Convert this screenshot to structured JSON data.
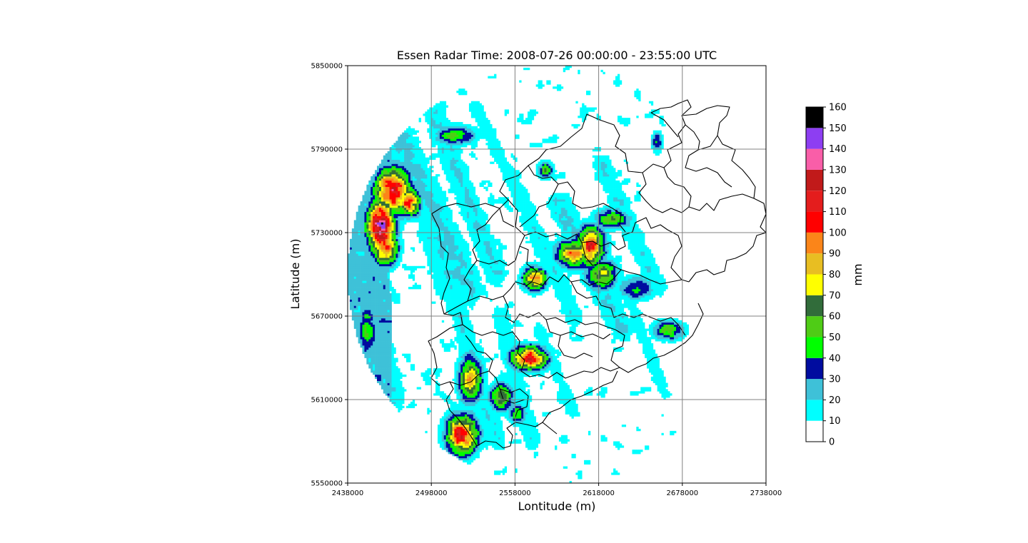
{
  "chart_data": {
    "type": "heatmap",
    "title": "Essen Radar Time: 2008-07-26 00:00:00 - 23:55:00 UTC",
    "xlabel": "Lontitude (m)",
    "ylabel": "Latitude (m)",
    "xlim": [
      2438000,
      2738000
    ],
    "ylim": [
      5550000,
      5850000
    ],
    "x_ticks": [
      "2438000",
      "2498000",
      "2558000",
      "2618000",
      "2678000",
      "2738000"
    ],
    "y_ticks": [
      "5550000",
      "5610000",
      "5670000",
      "5730000",
      "5790000",
      "5850000"
    ],
    "grid": true,
    "radar_center": [
      2588000,
      5700000
    ],
    "radar_range_m": 150000,
    "colorbar": {
      "label": "mm",
      "ticks": [
        "0",
        "10",
        "20",
        "30",
        "40",
        "50",
        "60",
        "70",
        "80",
        "90",
        "100",
        "110",
        "120",
        "130",
        "140",
        "150",
        "160"
      ],
      "bounds": [
        0,
        10,
        20,
        30,
        40,
        50,
        60,
        70,
        80,
        90,
        100,
        110,
        120,
        130,
        140,
        150,
        160
      ],
      "colors": [
        "#ffffff",
        "#00ffff",
        "#3ec1d8",
        "#000c9f",
        "#00ff00",
        "#4fcc16",
        "#316c3a",
        "#ffff00",
        "#e8be22",
        "#fb8519",
        "#ff0000",
        "#e41d1d",
        "#c11a1a",
        "#f95ea8",
        "#8d3ef2",
        "#000000"
      ]
    },
    "precip_cells": [
      {
        "x": 2470000,
        "y": 5760000,
        "peak": 120,
        "sx": 9000,
        "sy": 12000
      },
      {
        "x": 2462000,
        "y": 5735000,
        "peak": 140,
        "sx": 7000,
        "sy": 14000
      },
      {
        "x": 2465000,
        "y": 5720000,
        "peak": 110,
        "sx": 6000,
        "sy": 9000
      },
      {
        "x": 2482000,
        "y": 5752000,
        "peak": 100,
        "sx": 6000,
        "sy": 7000
      },
      {
        "x": 2515000,
        "y": 5800000,
        "peak": 55,
        "sx": 10000,
        "sy": 5000
      },
      {
        "x": 2452000,
        "y": 5660000,
        "peak": 50,
        "sx": 5000,
        "sy": 14000
      },
      {
        "x": 2612000,
        "y": 5720000,
        "peak": 110,
        "sx": 7000,
        "sy": 10000
      },
      {
        "x": 2600000,
        "y": 5715000,
        "peak": 90,
        "sx": 9000,
        "sy": 7000
      },
      {
        "x": 2572000,
        "y": 5697000,
        "peak": 90,
        "sx": 6000,
        "sy": 6000
      },
      {
        "x": 2620000,
        "y": 5700000,
        "peak": 70,
        "sx": 8000,
        "sy": 8000
      },
      {
        "x": 2628000,
        "y": 5740000,
        "peak": 60,
        "sx": 9000,
        "sy": 5000
      },
      {
        "x": 2568000,
        "y": 5640000,
        "peak": 110,
        "sx": 9000,
        "sy": 6000
      },
      {
        "x": 2526000,
        "y": 5625000,
        "peak": 80,
        "sx": 6000,
        "sy": 12000
      },
      {
        "x": 2548000,
        "y": 5612000,
        "peak": 70,
        "sx": 6000,
        "sy": 7000
      },
      {
        "x": 2520000,
        "y": 5585000,
        "peak": 110,
        "sx": 8000,
        "sy": 10000
      },
      {
        "x": 2560000,
        "y": 5600000,
        "peak": 50,
        "sx": 5000,
        "sy": 5000
      },
      {
        "x": 2668000,
        "y": 5660000,
        "peak": 55,
        "sx": 8000,
        "sy": 5000
      },
      {
        "x": 2645000,
        "y": 5690000,
        "peak": 45,
        "sx": 10000,
        "sy": 6000
      },
      {
        "x": 2580000,
        "y": 5775000,
        "peak": 55,
        "sx": 4000,
        "sy": 4000
      },
      {
        "x": 2660000,
        "y": 5795000,
        "peak": 45,
        "sx": 3000,
        "sy": 5000
      }
    ],
    "streaks": [
      {
        "x1": 2475000,
        "y1": 5800000,
        "x2": 2525000,
        "y2": 5690000,
        "v": 22,
        "w": 9000
      },
      {
        "x1": 2500000,
        "y1": 5815000,
        "x2": 2545000,
        "y2": 5700000,
        "v": 20,
        "w": 7000
      },
      {
        "x1": 2530000,
        "y1": 5820000,
        "x2": 2570000,
        "y2": 5740000,
        "v": 15,
        "w": 5000
      },
      {
        "x1": 2555000,
        "y1": 5770000,
        "x2": 2600000,
        "y2": 5670000,
        "v": 17,
        "w": 6000
      },
      {
        "x1": 2590000,
        "y1": 5750000,
        "x2": 2635000,
        "y2": 5660000,
        "v": 22,
        "w": 7000
      },
      {
        "x1": 2620000,
        "y1": 5780000,
        "x2": 2660000,
        "y2": 5690000,
        "v": 18,
        "w": 6000
      },
      {
        "x1": 2450000,
        "y1": 5700000,
        "x2": 2470000,
        "y2": 5610000,
        "v": 20,
        "w": 8000
      },
      {
        "x1": 2515000,
        "y1": 5680000,
        "x2": 2545000,
        "y2": 5580000,
        "v": 18,
        "w": 6000
      },
      {
        "x1": 2548000,
        "y1": 5670000,
        "x2": 2570000,
        "y2": 5580000,
        "v": 17,
        "w": 6000
      },
      {
        "x1": 2575000,
        "y1": 5660000,
        "x2": 2600000,
        "y2": 5600000,
        "v": 14,
        "w": 5000
      },
      {
        "x1": 2640000,
        "y1": 5680000,
        "x2": 2665000,
        "y2": 5615000,
        "v": 14,
        "w": 5000
      },
      {
        "x1": 2490000,
        "y1": 5760000,
        "x2": 2510000,
        "y2": 5690000,
        "v": 18,
        "w": 9000
      }
    ],
    "coverage_threshold_m": 0
  }
}
